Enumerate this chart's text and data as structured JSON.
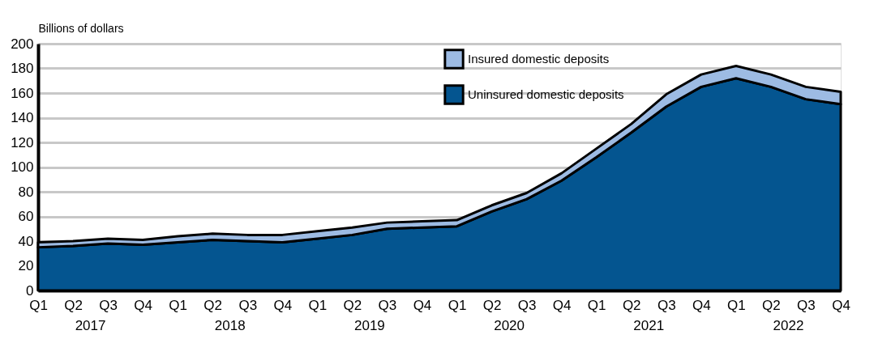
{
  "chart_data": {
    "type": "area",
    "stacked": true,
    "ylabel": "Billions of dollars",
    "categories": [
      "Q1",
      "Q2",
      "Q3",
      "Q4",
      "Q1",
      "Q2",
      "Q3",
      "Q4",
      "Q1",
      "Q2",
      "Q3",
      "Q4",
      "Q1",
      "Q2",
      "Q3",
      "Q4",
      "Q1",
      "Q2",
      "Q3",
      "Q4",
      "Q1",
      "Q2",
      "Q3",
      "Q4"
    ],
    "series": [
      {
        "name": "Uninsured domestic deposits",
        "color": "#045590",
        "values": [
          35,
          36,
          38,
          37,
          39,
          41,
          40,
          39,
          42,
          45,
          50,
          51,
          52,
          64,
          74,
          89,
          108,
          128,
          149,
          165,
          172,
          165,
          155,
          151
        ]
      },
      {
        "name": "Insured domestic deposits",
        "color": "#9dbbe3",
        "values": [
          4,
          4,
          4,
          4,
          5,
          5,
          5,
          6,
          6,
          6,
          5,
          5,
          5,
          5,
          5,
          6,
          7,
          7,
          10,
          10,
          10,
          10,
          10,
          10
        ]
      }
    ],
    "annotations": [
      "2017",
      "2018",
      "2019",
      "2020",
      "2021",
      "2022"
    ],
    "ylim": [
      0,
      200
    ],
    "yticks": [
      0,
      20,
      40,
      60,
      80,
      100,
      120,
      140,
      160,
      180,
      200
    ],
    "grid": "y",
    "legend": "top"
  }
}
